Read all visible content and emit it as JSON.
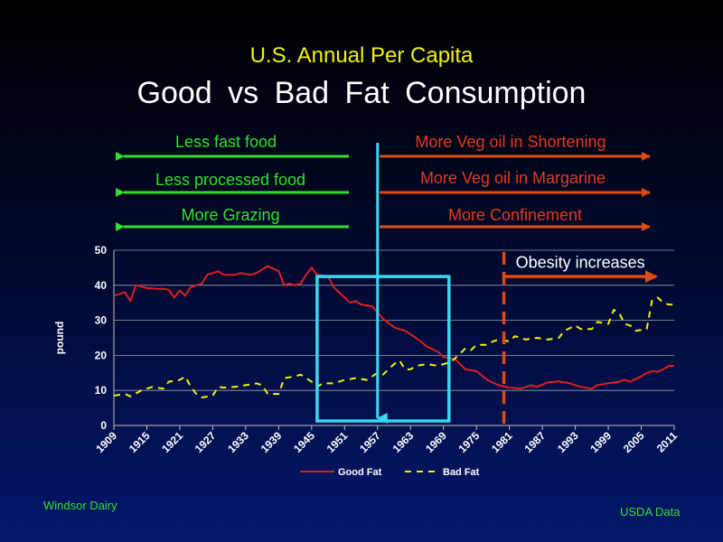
{
  "header": {
    "subtitle": "U.S. Annual Per Capita",
    "title": "Good  vs  Bad  Fat  Consumption"
  },
  "arrows": {
    "left": [
      {
        "label": "Less fast food"
      },
      {
        "label": "Less processed food"
      },
      {
        "label": "More Grazing"
      }
    ],
    "right": [
      {
        "label": "More Veg oil in Shortening"
      },
      {
        "label": "More Veg oil in Margarine"
      },
      {
        "label": "More Confinement"
      }
    ]
  },
  "annotation": {
    "obesity_label": "Obesity  increases",
    "obesity_start_year": 1980
  },
  "colors": {
    "good_fat": "#e01e1e",
    "bad_fat": "#f2f20a",
    "highlight_box": "#3ad8f0",
    "obesity_arrow": "#e14a12",
    "left_arrow": "#2fe02f",
    "right_arrow": "#e14a12"
  },
  "chart_data": {
    "type": "line",
    "ylabel": "pound",
    "ylim": [
      0,
      50
    ],
    "yticks": [
      0,
      10,
      20,
      30,
      40,
      50
    ],
    "xlim": [
      1909,
      2011
    ],
    "xticks": [
      1909,
      1915,
      1921,
      1927,
      1933,
      1939,
      1945,
      1951,
      1957,
      1963,
      1969,
      1975,
      1981,
      1987,
      1993,
      1999,
      2005,
      2011
    ],
    "grid": true,
    "legend_position": "bottom",
    "highlight_range": [
      1946,
      1970
    ],
    "series": [
      {
        "name": "Good Fat",
        "style": "solid",
        "points": [
          [
            1909,
            37
          ],
          [
            1911,
            38
          ],
          [
            1912,
            35.5
          ],
          [
            1913,
            40
          ],
          [
            1915,
            39.2
          ],
          [
            1917,
            39
          ],
          [
            1918,
            39
          ],
          [
            1919,
            38.7
          ],
          [
            1920,
            36.5
          ],
          [
            1921,
            38.5
          ],
          [
            1922,
            37
          ],
          [
            1923,
            39.5
          ],
          [
            1925,
            40.5
          ],
          [
            1926,
            43
          ],
          [
            1928,
            44
          ],
          [
            1929,
            43
          ],
          [
            1931,
            43
          ],
          [
            1932,
            43.5
          ],
          [
            1934,
            43
          ],
          [
            1935,
            43.5
          ],
          [
            1937,
            45.5
          ],
          [
            1939,
            44
          ],
          [
            1940,
            40
          ],
          [
            1941,
            40.5
          ],
          [
            1942,
            40
          ],
          [
            1943,
            40.5
          ],
          [
            1944,
            43
          ],
          [
            1945,
            45
          ],
          [
            1946,
            43
          ],
          [
            1948,
            42.5
          ],
          [
            1949,
            39.5
          ],
          [
            1950,
            38
          ],
          [
            1952,
            35
          ],
          [
            1953,
            35.5
          ],
          [
            1954,
            34.5
          ],
          [
            1956,
            34
          ],
          [
            1958,
            30.5
          ],
          [
            1960,
            28
          ],
          [
            1962,
            27
          ],
          [
            1964,
            25
          ],
          [
            1966,
            22.5
          ],
          [
            1968,
            21
          ],
          [
            1969,
            19.5
          ],
          [
            1971,
            19
          ],
          [
            1973,
            16
          ],
          [
            1975,
            15.5
          ],
          [
            1977,
            13
          ],
          [
            1979,
            11.5
          ],
          [
            1981,
            10.8
          ],
          [
            1983,
            10.5
          ],
          [
            1985,
            11.5
          ],
          [
            1986,
            11
          ],
          [
            1988,
            12.3
          ],
          [
            1990,
            12.6
          ],
          [
            1992,
            12
          ],
          [
            1994,
            11
          ],
          [
            1996,
            10.5
          ],
          [
            1997,
            11.5
          ],
          [
            1999,
            12
          ],
          [
            2001,
            12.5
          ],
          [
            2002,
            13
          ],
          [
            2003,
            12.5
          ],
          [
            2005,
            14
          ],
          [
            2006,
            15
          ],
          [
            2007,
            15.5
          ],
          [
            2008,
            15.3
          ],
          [
            2009,
            16
          ],
          [
            2010,
            17
          ],
          [
            2011,
            17
          ]
        ]
      },
      {
        "name": "Bad Fat",
        "style": "dashed",
        "points": [
          [
            1909,
            8.5
          ],
          [
            1911,
            9
          ],
          [
            1912,
            8.3
          ],
          [
            1914,
            10
          ],
          [
            1916,
            11
          ],
          [
            1918,
            10.5
          ],
          [
            1919,
            12.5
          ],
          [
            1921,
            13
          ],
          [
            1922,
            14
          ],
          [
            1923,
            11
          ],
          [
            1924,
            9
          ],
          [
            1925,
            8
          ],
          [
            1927,
            8.5
          ],
          [
            1928,
            11
          ],
          [
            1929,
            10.8
          ],
          [
            1931,
            11
          ],
          [
            1933,
            11.5
          ],
          [
            1935,
            12
          ],
          [
            1936,
            11.5
          ],
          [
            1937,
            9
          ],
          [
            1939,
            9
          ],
          [
            1940,
            13.5
          ],
          [
            1942,
            14
          ],
          [
            1943,
            14.5
          ],
          [
            1945,
            12.5
          ],
          [
            1946,
            11
          ],
          [
            1947,
            12
          ],
          [
            1949,
            12
          ],
          [
            1951,
            13
          ],
          [
            1953,
            13.5
          ],
          [
            1955,
            13
          ],
          [
            1957,
            15
          ],
          [
            1958,
            14.5
          ],
          [
            1960,
            17.5
          ],
          [
            1961,
            18.5
          ],
          [
            1962,
            16
          ],
          [
            1963,
            16
          ],
          [
            1964,
            17
          ],
          [
            1966,
            17.5
          ],
          [
            1968,
            17
          ],
          [
            1970,
            18
          ],
          [
            1971,
            19
          ],
          [
            1972,
            20.5
          ],
          [
            1973,
            22
          ],
          [
            1974,
            21.5
          ],
          [
            1975,
            23
          ],
          [
            1977,
            23
          ],
          [
            1978,
            24
          ],
          [
            1979,
            24.5
          ],
          [
            1981,
            24
          ],
          [
            1982,
            25.5
          ],
          [
            1983,
            25
          ],
          [
            1984,
            24.5
          ],
          [
            1986,
            25
          ],
          [
            1988,
            24.5
          ],
          [
            1990,
            25
          ],
          [
            1991,
            27
          ],
          [
            1993,
            28.5
          ],
          [
            1994,
            27.5
          ],
          [
            1996,
            27.5
          ],
          [
            1997,
            29.5
          ],
          [
            1999,
            29
          ],
          [
            2000,
            33
          ],
          [
            2001,
            32
          ],
          [
            2002,
            29
          ],
          [
            2003,
            28.5
          ],
          [
            2004,
            27
          ],
          [
            2006,
            27.5
          ],
          [
            2007,
            36
          ],
          [
            2008,
            36.5
          ],
          [
            2009,
            35
          ],
          [
            2010,
            34.5
          ],
          [
            2011,
            34.5
          ]
        ]
      }
    ]
  },
  "footer": {
    "left": "Windsor  Dairy",
    "right": "USDA  Data"
  }
}
